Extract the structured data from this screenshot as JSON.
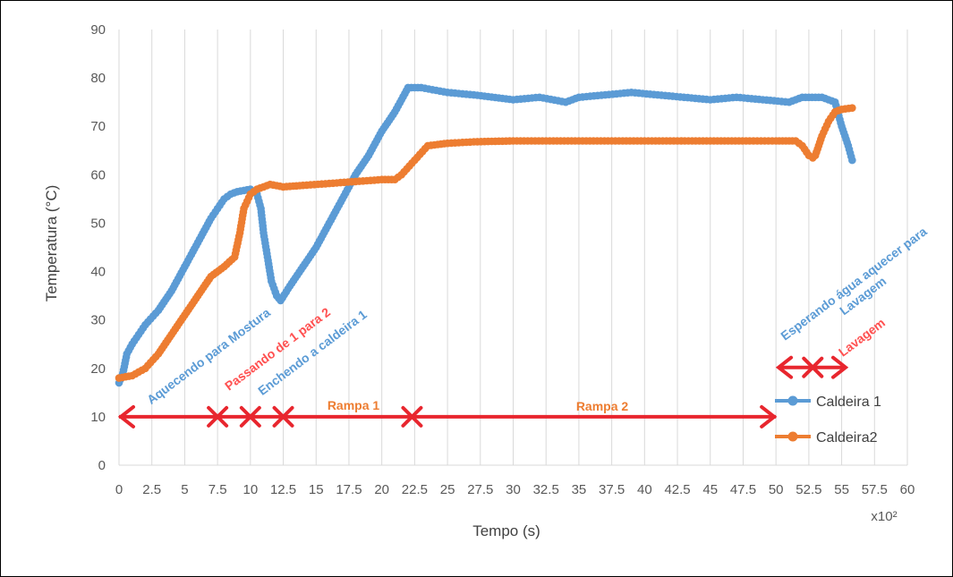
{
  "chart_data": {
    "type": "line",
    "title": "",
    "xlabel": "Tempo (s)",
    "ylabel": "Temperatura (°C)",
    "x_multiplier_label": "x10²",
    "xlim": [
      0,
      60
    ],
    "ylim": [
      0,
      90
    ],
    "x_ticks": [
      "0",
      "2.5",
      "5",
      "7.5",
      "10",
      "12.5",
      "15",
      "17.5",
      "20",
      "22.5",
      "25",
      "27.5",
      "30",
      "32.5",
      "35",
      "37.5",
      "40",
      "42.5",
      "45",
      "47.5",
      "50",
      "52.5",
      "55",
      "57.5",
      "60"
    ],
    "y_ticks": [
      "0",
      "10",
      "20",
      "30",
      "40",
      "50",
      "60",
      "70",
      "80",
      "90"
    ],
    "grid": "vertical",
    "legend_position": "bottom-right",
    "series": [
      {
        "name": "Caldeira 1",
        "color": "#5b9bd5",
        "points": [
          [
            0,
            17
          ],
          [
            0.3,
            19
          ],
          [
            0.6,
            23
          ],
          [
            1,
            25
          ],
          [
            1.5,
            27
          ],
          [
            2,
            29
          ],
          [
            3,
            32
          ],
          [
            4,
            36
          ],
          [
            5,
            41
          ],
          [
            6,
            46
          ],
          [
            7,
            51
          ],
          [
            7.5,
            53
          ],
          [
            8,
            55
          ],
          [
            8.5,
            56
          ],
          [
            9,
            56.5
          ],
          [
            10,
            57
          ],
          [
            10.5,
            56
          ],
          [
            10.8,
            53
          ],
          [
            11,
            48
          ],
          [
            11.3,
            43
          ],
          [
            11.6,
            38
          ],
          [
            12,
            35
          ],
          [
            12.3,
            34
          ],
          [
            13,
            37
          ],
          [
            14,
            41
          ],
          [
            15,
            45
          ],
          [
            16,
            50
          ],
          [
            17,
            55
          ],
          [
            18,
            60
          ],
          [
            19,
            64
          ],
          [
            20,
            69
          ],
          [
            21,
            73
          ],
          [
            22,
            78
          ],
          [
            23,
            78
          ],
          [
            25,
            77
          ],
          [
            27,
            76.5
          ],
          [
            30,
            75.5
          ],
          [
            32,
            76
          ],
          [
            34,
            75
          ],
          [
            35,
            76
          ],
          [
            37,
            76.5
          ],
          [
            39,
            77
          ],
          [
            41,
            76.5
          ],
          [
            43,
            76
          ],
          [
            45,
            75.5
          ],
          [
            47,
            76
          ],
          [
            49,
            75.5
          ],
          [
            51,
            75
          ],
          [
            52,
            76
          ],
          [
            53.5,
            76
          ],
          [
            54.5,
            75
          ],
          [
            55,
            70
          ],
          [
            55.5,
            66
          ],
          [
            55.8,
            63
          ]
        ]
      },
      {
        "name": "Caldeira2",
        "color": "#ed7d31",
        "points": [
          [
            0,
            18
          ],
          [
            1,
            18.5
          ],
          [
            2,
            20
          ],
          [
            3,
            23
          ],
          [
            4,
            27
          ],
          [
            5,
            31
          ],
          [
            6,
            35
          ],
          [
            7,
            39
          ],
          [
            8,
            41
          ],
          [
            8.8,
            43
          ],
          [
            9.2,
            48
          ],
          [
            9.5,
            53
          ],
          [
            10,
            56
          ],
          [
            10.5,
            57
          ],
          [
            11.5,
            58
          ],
          [
            12.5,
            57.5
          ],
          [
            14,
            57.8
          ],
          [
            16,
            58.2
          ],
          [
            18,
            58.6
          ],
          [
            20,
            59
          ],
          [
            21,
            59
          ],
          [
            21.5,
            60
          ],
          [
            22.5,
            63
          ],
          [
            23.5,
            66
          ],
          [
            25,
            66.5
          ],
          [
            27,
            66.8
          ],
          [
            30,
            67
          ],
          [
            35,
            67
          ],
          [
            40,
            67
          ],
          [
            45,
            67
          ],
          [
            48,
            67
          ],
          [
            50,
            67
          ],
          [
            51.5,
            67
          ],
          [
            52,
            66
          ],
          [
            52.5,
            64
          ],
          [
            52.8,
            63.5
          ],
          [
            53,
            64
          ],
          [
            53.5,
            68
          ],
          [
            54,
            71
          ],
          [
            54.5,
            73
          ],
          [
            55,
            73.5
          ],
          [
            55.8,
            73.8
          ]
        ]
      }
    ],
    "annotations": {
      "phases": [
        {
          "text": "Aquecendo para Mostura",
          "color": "#5b9bd5"
        },
        {
          "text": "Passando de 1 para 2",
          "color": "#ff5050"
        },
        {
          "text": "Enchendo a caldeira 1",
          "color": "#5b9bd5"
        },
        {
          "text": "Rampa 1",
          "color": "#ed7d31"
        },
        {
          "text": "Rampa 2",
          "color": "#ed7d31"
        },
        {
          "text": "Esperando água aquecer para Lavagem",
          "color": "#5b9bd5"
        },
        {
          "text": "Lavagem",
          "color": "#ff5050"
        }
      ],
      "arrow_color": "#e8262e"
    }
  }
}
